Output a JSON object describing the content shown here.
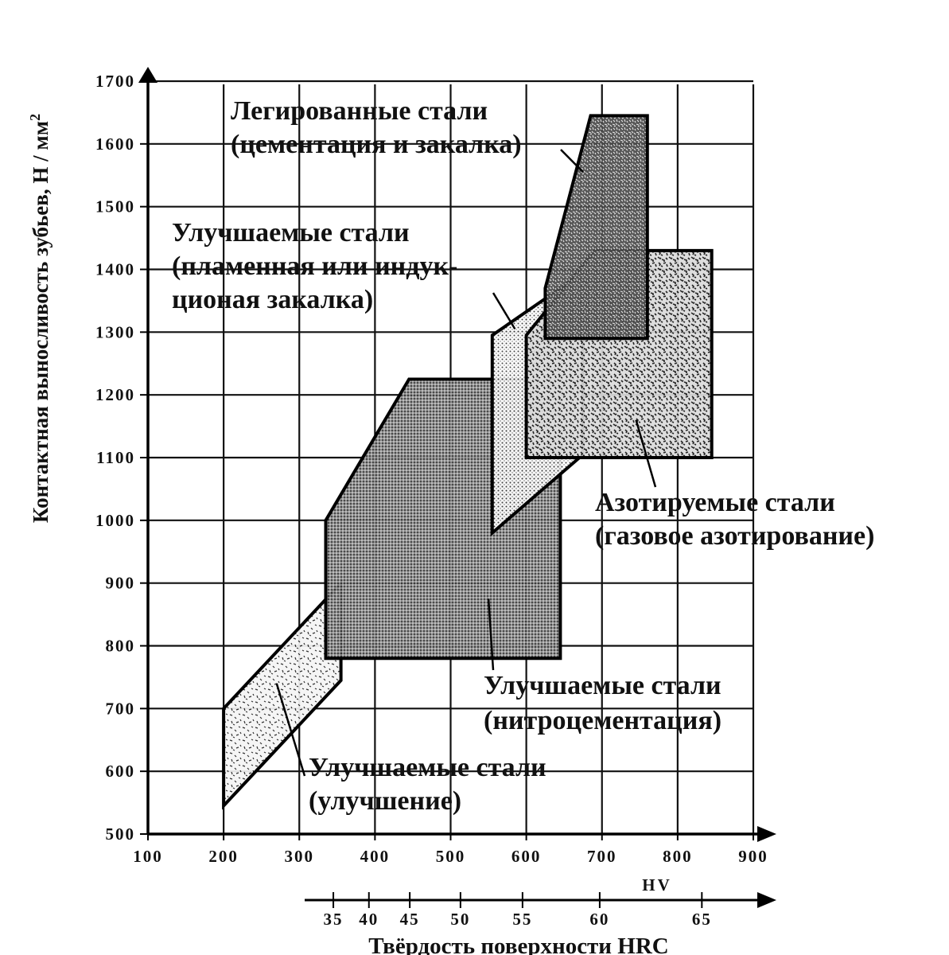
{
  "chart_data": {
    "type": "area",
    "xlabel": "HV",
    "ylabel": "Контактная выносливость зубьев, Н / мм",
    "ylabel_superscript": "2",
    "secondary_xlabel": "Твёрдость поверхности HRC",
    "xlim": [
      100,
      900
    ],
    "ylim": [
      500,
      1700
    ],
    "x_ticks": [
      100,
      200,
      300,
      400,
      500,
      600,
      700,
      800,
      900
    ],
    "y_ticks": [
      500,
      600,
      700,
      800,
      900,
      1000,
      1100,
      1200,
      1300,
      1400,
      1500,
      1600,
      1700
    ],
    "hrc_ticks": [
      {
        "label": "35",
        "hv": 345
      },
      {
        "label": "40",
        "hv": 392
      },
      {
        "label": "45",
        "hv": 446
      },
      {
        "label": "50",
        "hv": 513
      },
      {
        "label": "55",
        "hv": 595
      },
      {
        "label": "60",
        "hv": 697
      },
      {
        "label": "65",
        "hv": 832
      }
    ],
    "grid": true,
    "series": [
      {
        "name": "Улучшаемые стали (улучшение)",
        "lines": [
          "Улучшаемые стали",
          "(улучшение)"
        ],
        "pattern": "speckle-light",
        "polygon": [
          [
            200,
            545
          ],
          [
            355,
            745
          ],
          [
            355,
            900
          ],
          [
            200,
            700
          ]
        ]
      },
      {
        "name": "Улучшаемые стали (нитроцементация)",
        "lines": [
          "Улучшаемые стали",
          "(нитроцементация)"
        ],
        "pattern": "dots-dark",
        "polygon": [
          [
            335,
            780
          ],
          [
            645,
            780
          ],
          [
            645,
            1225
          ],
          [
            445,
            1225
          ],
          [
            335,
            1000
          ]
        ]
      },
      {
        "name": "Улучшаемые стали (пламенная или индукционая закалка)",
        "lines": [
          "Улучшаемые стали",
          "(пламенная или индук-",
          "ционая закалка)"
        ],
        "pattern": "dots-light",
        "polygon": [
          [
            555,
            980
          ],
          [
            675,
            1105
          ],
          [
            675,
            1395
          ],
          [
            555,
            1295
          ]
        ]
      },
      {
        "name": "Азотируемые стали (газовое азотирование)",
        "lines": [
          "Азотируемые стали",
          "(газовое азотирование)"
        ],
        "pattern": "speckle-medium",
        "polygon": [
          [
            600,
            1100
          ],
          [
            845,
            1100
          ],
          [
            845,
            1430
          ],
          [
            690,
            1430
          ],
          [
            600,
            1295
          ]
        ]
      },
      {
        "name": "Легированные стали (цементация и закалка)",
        "lines": [
          "Легированные стали",
          "(цементация и закалка)"
        ],
        "pattern": "speckle-dense",
        "polygon": [
          [
            625,
            1290
          ],
          [
            760,
            1290
          ],
          [
            760,
            1645
          ],
          [
            685,
            1645
          ],
          [
            625,
            1370
          ]
        ]
      }
    ]
  }
}
